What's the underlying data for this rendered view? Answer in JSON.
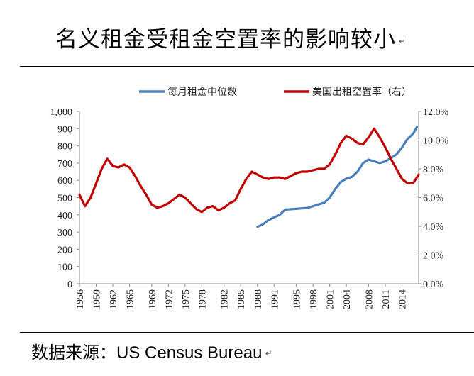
{
  "header": {
    "title": "名义租金受租金空置率的影响较小",
    "mark": "↵"
  },
  "footer": {
    "source_label": "数据来源：",
    "source_value": "US Census Bureau",
    "mark": "↵"
  },
  "colors": {
    "rent": "#4a7ebb",
    "vacancy": "#c00000"
  },
  "chart_data": {
    "type": "line",
    "title": "",
    "x_tick_labels": [
      "1956",
      "1959",
      "1962",
      "1965",
      "1969",
      "1972",
      "1975",
      "1978",
      "1982",
      "1985",
      "1988",
      "1991",
      "1995",
      "1998",
      "2001",
      "2004",
      "2008",
      "2011",
      "2014"
    ],
    "xlim": [
      1956,
      2017
    ],
    "y_left": {
      "ticks": [
        "0",
        "100",
        "200",
        "300",
        "400",
        "500",
        "600",
        "700",
        "800",
        "900",
        "1,000"
      ],
      "ylim": [
        0,
        1000
      ]
    },
    "y_right": {
      "ticks": [
        "0.0%",
        "2.0%",
        "4.0%",
        "6.0%",
        "8.0%",
        "10.0%",
        "12.0%"
      ],
      "ylim": [
        0,
        12
      ]
    },
    "legend": {
      "placement": "top",
      "entries": [
        "每月租金中位数",
        "美国出租空置率（右）"
      ]
    },
    "series": [
      {
        "name": "每月租金中位数",
        "axis": "left",
        "x": [
          1988,
          1989,
          1990,
          1992,
          1993,
          1995,
          1997,
          1999,
          2000,
          2001,
          2002,
          2003,
          2004,
          2005,
          2006,
          2007,
          2008,
          2009,
          2010,
          2011,
          2012,
          2013,
          2014,
          2015,
          2016,
          2016.7
        ],
        "values": [
          330,
          345,
          370,
          400,
          430,
          435,
          440,
          460,
          470,
          500,
          550,
          590,
          610,
          620,
          650,
          700,
          720,
          710,
          700,
          710,
          730,
          750,
          790,
          840,
          870,
          910
        ]
      },
      {
        "name": "美国出租空置率（右）",
        "axis": "right",
        "x": [
          1956,
          1957,
          1958,
          1959,
          1960,
          1961,
          1962,
          1963,
          1964,
          1965,
          1966,
          1967,
          1968,
          1969,
          1970,
          1971,
          1972,
          1973,
          1974,
          1975,
          1976,
          1977,
          1978,
          1979,
          1980,
          1981,
          1982,
          1983,
          1984,
          1985,
          1986,
          1987,
          1988,
          1989,
          1990,
          1991,
          1992,
          1993,
          1994,
          1995,
          1996,
          1997,
          1998,
          1999,
          2000,
          2001,
          2002,
          2003,
          2004,
          2005,
          2006,
          2007,
          2008,
          2009,
          2010,
          2011,
          2012,
          2013,
          2014,
          2015,
          2016,
          2017
        ],
        "values": [
          6.2,
          5.4,
          6.0,
          7.0,
          8.0,
          8.7,
          8.2,
          8.1,
          8.3,
          8.1,
          7.5,
          6.8,
          6.2,
          5.5,
          5.3,
          5.4,
          5.6,
          5.9,
          6.2,
          6.0,
          5.6,
          5.2,
          5.0,
          5.3,
          5.4,
          5.1,
          5.3,
          5.6,
          5.8,
          6.6,
          7.3,
          7.8,
          7.6,
          7.4,
          7.3,
          7.4,
          7.4,
          7.3,
          7.5,
          7.7,
          7.8,
          7.8,
          7.9,
          8.0,
          8.0,
          8.3,
          9.0,
          9.8,
          10.3,
          10.1,
          9.8,
          9.7,
          10.2,
          10.8,
          10.2,
          9.5,
          8.7,
          8.0,
          7.3,
          7.0,
          7.0,
          7.6
        ]
      }
    ]
  }
}
